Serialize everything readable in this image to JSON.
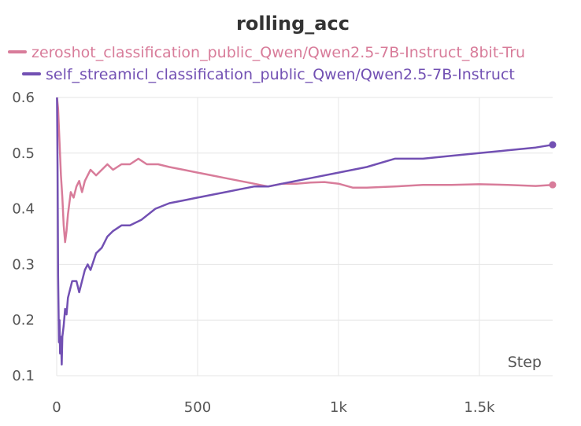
{
  "chart_data": {
    "type": "line",
    "title": "rolling_acc",
    "xlabel": "Step",
    "ylabel": "",
    "xlim": [
      0,
      1760
    ],
    "ylim": [
      0.1,
      0.6
    ],
    "xticks": [
      0,
      500,
      1000,
      1500
    ],
    "xtick_labels": [
      "0",
      "500",
      "1k",
      "1.5k"
    ],
    "yticks": [
      0.1,
      0.2,
      0.3,
      0.4,
      0.5,
      0.6
    ],
    "ytick_labels": [
      "0.1",
      "0.2",
      "0.3",
      "0.4",
      "0.5",
      "0.6"
    ],
    "grid": true,
    "legend_position": "top",
    "series": [
      {
        "name": "zeroshot_classification_public_Qwen/Qwen2.5-7B-Instruct_8bit-Tru",
        "color": "#d87c9a",
        "x": [
          1,
          5,
          10,
          15,
          20,
          25,
          30,
          35,
          40,
          50,
          60,
          70,
          80,
          90,
          100,
          120,
          140,
          160,
          180,
          200,
          230,
          260,
          290,
          320,
          360,
          400,
          450,
          500,
          550,
          600,
          650,
          700,
          750,
          800,
          850,
          900,
          950,
          1000,
          1050,
          1100,
          1200,
          1300,
          1400,
          1500,
          1600,
          1700,
          1760
        ],
        "y": [
          0.6,
          0.58,
          0.52,
          0.46,
          0.42,
          0.37,
          0.34,
          0.36,
          0.39,
          0.43,
          0.42,
          0.44,
          0.45,
          0.43,
          0.45,
          0.47,
          0.46,
          0.47,
          0.48,
          0.47,
          0.48,
          0.48,
          0.49,
          0.48,
          0.48,
          0.475,
          0.47,
          0.465,
          0.46,
          0.455,
          0.45,
          0.445,
          0.44,
          0.445,
          0.445,
          0.447,
          0.448,
          0.445,
          0.438,
          0.438,
          0.44,
          0.443,
          0.443,
          0.444,
          0.443,
          0.441,
          0.443
        ]
      },
      {
        "name": "self_streamicl_classification_public_Qwen/Qwen2.5-7B-Instruct",
        "color": "#7250b3",
        "x": [
          1,
          3,
          5,
          8,
          10,
          12,
          15,
          18,
          20,
          25,
          30,
          35,
          40,
          45,
          50,
          55,
          60,
          70,
          80,
          90,
          100,
          110,
          120,
          140,
          160,
          180,
          200,
          230,
          260,
          300,
          350,
          400,
          450,
          500,
          550,
          600,
          650,
          700,
          750,
          800,
          900,
          1000,
          1100,
          1200,
          1300,
          1400,
          1500,
          1600,
          1700,
          1760
        ],
        "y": [
          0.6,
          0.48,
          0.28,
          0.16,
          0.2,
          0.14,
          0.17,
          0.12,
          0.17,
          0.19,
          0.22,
          0.21,
          0.24,
          0.25,
          0.26,
          0.27,
          0.27,
          0.27,
          0.25,
          0.27,
          0.29,
          0.3,
          0.29,
          0.32,
          0.33,
          0.35,
          0.36,
          0.37,
          0.37,
          0.38,
          0.4,
          0.41,
          0.415,
          0.42,
          0.425,
          0.43,
          0.435,
          0.44,
          0.44,
          0.445,
          0.455,
          0.465,
          0.475,
          0.49,
          0.49,
          0.495,
          0.5,
          0.505,
          0.51,
          0.515
        ]
      }
    ]
  }
}
